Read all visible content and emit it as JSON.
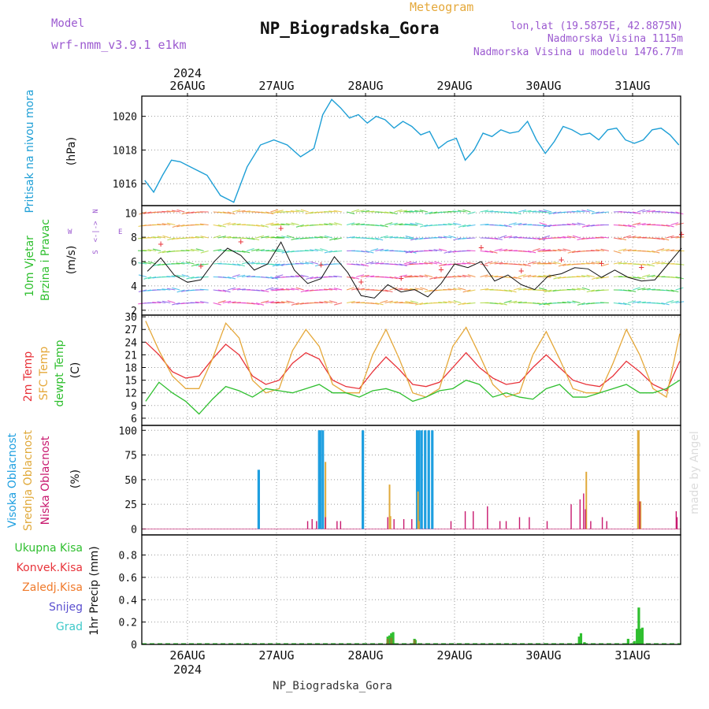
{
  "header": {
    "meteogram": "Meteogram",
    "title": "NP_Biogradska_Gora",
    "model_label": "Model",
    "model_name": "wrf-nmm_v3.9.1 e1km",
    "lonlat": "lon,lat (19.5875E, 42.8875N)",
    "elevation": "Nadmorska Visina 1115m",
    "model_elevation": "Nadmorska Visina u modelu 1476.77m",
    "year": "2024",
    "footer": "NP_Biogradska_Gora",
    "watermark": "made by Angel"
  },
  "colors": {
    "pressure": "#1e9fd6",
    "temp2m": "#e8333a",
    "sfc": "#e5a83a",
    "dewpt": "#2fbf2f",
    "high_cloud": "#1e9fe0",
    "mid_cloud": "#e0a93a",
    "low_cloud": "#c8186e",
    "total_precip": "#2fbf2f",
    "conv_precip": "#e8333a",
    "frozen_precip": "#f07a2a",
    "snow": "#5a4fcf",
    "hail": "#3fc9c9",
    "title_purple": "#9b59d0"
  },
  "chart_data": [
    {
      "type": "line",
      "panel": "pressure",
      "ylabel_main": "Pritisak na nivou mora",
      "ylabel_unit": "(hPa)",
      "yticks": [
        1016,
        1018,
        1020
      ],
      "ylim": [
        1014.7,
        1021.2
      ],
      "x_days": [
        0,
        0.1,
        0.2,
        0.3,
        0.4,
        0.55,
        0.7,
        0.85,
        1.0,
        1.15,
        1.3,
        1.45,
        1.6,
        1.75,
        1.9,
        2.0,
        2.1,
        2.2,
        2.3,
        2.4,
        2.5,
        2.6,
        2.7,
        2.8,
        2.9,
        3.0,
        3.1,
        3.2,
        3.3,
        3.4,
        3.5,
        3.6,
        3.7,
        3.8,
        3.9,
        4.0,
        4.1,
        4.2,
        4.3,
        4.4,
        4.5,
        4.6,
        4.7,
        4.8,
        4.9,
        5.0,
        5.1,
        5.2,
        5.3,
        5.4,
        5.5,
        5.6,
        5.7,
        5.8,
        5.9,
        6.0
      ],
      "values": [
        1016.2,
        1015.5,
        1016.5,
        1017.4,
        1017.3,
        1016.9,
        1016.5,
        1015.3,
        1014.9,
        1017.0,
        1018.3,
        1018.6,
        1018.3,
        1017.6,
        1018.1,
        1020.1,
        1021.0,
        1020.5,
        1019.9,
        1020.1,
        1019.6,
        1020.0,
        1019.8,
        1019.3,
        1019.7,
        1019.4,
        1018.9,
        1019.1,
        1018.1,
        1018.5,
        1018.7,
        1017.4,
        1018.0,
        1019.0,
        1018.8,
        1019.2,
        1019.0,
        1019.1,
        1019.7,
        1018.6,
        1017.8,
        1018.5,
        1019.4,
        1019.2,
        1018.9,
        1019.0,
        1018.6,
        1019.2,
        1019.3,
        1018.6,
        1018.4,
        1018.6,
        1019.2,
        1019.3,
        1018.9,
        1018.3
      ]
    },
    {
      "type": "line",
      "panel": "wind",
      "ylabel_main": "10m Vjetar",
      "ylabel_sub": "Brzina i Pravac",
      "ylabel_unit": "(m/s)",
      "compass_n": "N",
      "compass_s": "S",
      "compass_w": "W",
      "compass_e": "E",
      "compass_center": "<-|->",
      "yticks": [
        2,
        4,
        6,
        8,
        10
      ],
      "ylim": [
        1.6,
        10.6
      ],
      "x_days": [
        0,
        0.15,
        0.3,
        0.45,
        0.6,
        0.75,
        0.9,
        1.05,
        1.2,
        1.35,
        1.5,
        1.65,
        1.8,
        1.95,
        2.1,
        2.25,
        2.4,
        2.55,
        2.7,
        2.85,
        3.0,
        3.15,
        3.3,
        3.45,
        3.6,
        3.75,
        3.9,
        4.05,
        4.2,
        4.35,
        4.5,
        4.65,
        4.8,
        4.95,
        5.1,
        5.25,
        5.4,
        5.55,
        5.7,
        5.85,
        6.0
      ],
      "values": [
        5.2,
        6.3,
        4.9,
        4.3,
        4.5,
        6.0,
        7.1,
        6.5,
        5.3,
        5.8,
        7.6,
        5.3,
        4.2,
        4.6,
        6.4,
        5.1,
        3.2,
        3.0,
        4.1,
        3.5,
        3.7,
        3.1,
        4.2,
        5.8,
        5.5,
        6.0,
        4.4,
        4.9,
        4.1,
        3.7,
        4.8,
        5.0,
        5.5,
        5.4,
        4.7,
        5.3,
        4.7,
        4.4,
        4.5,
        5.8,
        7.1
      ]
    },
    {
      "type": "line",
      "panel": "temperature",
      "ylabel_1": "2m Temp",
      "ylabel_2": "SFC Temp",
      "ylabel_3": "dewpt Temp",
      "ylabel_unit": "(C)",
      "yticks": [
        6,
        9,
        12,
        15,
        18,
        21,
        24,
        27,
        30
      ],
      "ylim": [
        4.3,
        30.4
      ],
      "x_days": [
        0,
        0.15,
        0.3,
        0.45,
        0.6,
        0.75,
        0.9,
        1.05,
        1.2,
        1.35,
        1.5,
        1.65,
        1.8,
        1.95,
        2.1,
        2.25,
        2.4,
        2.55,
        2.7,
        2.85,
        3.0,
        3.15,
        3.3,
        3.45,
        3.6,
        3.75,
        3.9,
        4.05,
        4.2,
        4.35,
        4.5,
        4.65,
        4.8,
        4.95,
        5.1,
        5.25,
        5.4,
        5.55,
        5.7,
        5.85,
        6.0
      ],
      "series": [
        {
          "name": "2m Temp",
          "values": [
            24,
            21,
            17,
            15.5,
            16,
            20,
            23.5,
            21,
            16,
            14,
            15,
            19,
            21.5,
            20,
            15,
            13.5,
            13,
            17,
            20.5,
            17.5,
            14,
            13.5,
            14.5,
            18,
            21.5,
            18,
            15.5,
            14,
            14.5,
            18,
            21,
            18,
            15,
            14,
            13.5,
            16,
            19.5,
            17,
            14,
            12.5,
            19.5
          ]
        },
        {
          "name": "SFC Temp",
          "values": [
            29,
            22,
            16,
            13,
            13,
            20,
            28.5,
            25,
            15,
            12,
            13,
            22,
            27,
            23,
            14,
            12,
            12,
            21,
            27,
            20,
            12,
            11,
            13,
            23,
            27.5,
            21,
            14,
            11,
            12,
            21,
            26.5,
            20,
            13,
            12,
            12,
            19,
            27,
            21,
            13,
            11,
            26
          ]
        },
        {
          "name": "dewpt Temp",
          "values": [
            10,
            14.5,
            12,
            10,
            7,
            10.5,
            13.5,
            12.5,
            11,
            13,
            12.5,
            12,
            13,
            14,
            12,
            12,
            11,
            12.5,
            13,
            12,
            10,
            11,
            12.5,
            13,
            15,
            14,
            11,
            12,
            11,
            10.5,
            13,
            14,
            11,
            11,
            12,
            13,
            14,
            12,
            12,
            13,
            15
          ]
        }
      ]
    },
    {
      "type": "bar",
      "panel": "cloud",
      "ylabel_1": "Visoka Oblacnost",
      "ylabel_2": "Srednja Oblacnost",
      "ylabel_3": "Niska Oblacnost",
      "ylabel_unit": "(%)",
      "yticks": [
        0,
        25,
        50,
        75,
        100
      ],
      "ylim": [
        -6,
        105
      ],
      "series": [
        {
          "name": "Visoka Oblacnost",
          "x_days": [
            1.3,
            1.98,
            1.99,
            2.02,
            2.47,
            3.08,
            3.1,
            3.13,
            3.17,
            3.21,
            3.25
          ],
          "values": [
            60,
            100,
            100,
            100,
            100,
            100,
            100,
            100,
            100,
            100,
            100
          ]
        },
        {
          "name": "Srednja Oblacnost",
          "x_days": [
            2.05,
            2.77,
            2.78,
            3.09,
            3.1,
            4.98,
            5.56,
            5.57,
            5.59
          ],
          "values": [
            68,
            45,
            13,
            38,
            8,
            58,
            100,
            100,
            28
          ]
        },
        {
          "name": "Niska Oblacnost",
          "x_days": [
            1.85,
            1.9,
            1.95,
            2.05,
            2.18,
            2.22,
            2.75,
            2.82,
            2.93,
            3.02,
            3.46,
            3.62,
            3.71,
            3.87,
            4.01,
            4.08,
            4.23,
            4.34,
            4.54,
            4.81,
            4.91,
            4.95,
            4.97,
            5.03,
            5.16,
            5.21,
            5.58,
            5.99,
            6.0
          ],
          "values": [
            8,
            10,
            8,
            12,
            8,
            8,
            12,
            10,
            10,
            10,
            8,
            18,
            18,
            23,
            8,
            8,
            12,
            12,
            8,
            25,
            30,
            36,
            20,
            8,
            12,
            8,
            28,
            18,
            12
          ]
        }
      ]
    },
    {
      "type": "bar",
      "panel": "precip",
      "ylabel_1": "Ukupna Kisa",
      "ylabel_2": "Konvek.Kisa",
      "ylabel_3": "Zaledj.Kisa",
      "ylabel_4": "Snijeg",
      "ylabel_5": "Grad",
      "ylabel_unit": "1hr Precip (mm)",
      "yticks": [
        0,
        0.2,
        0.4,
        0.6,
        0.8
      ],
      "ylim": [
        0,
        0.98
      ],
      "x_labels": [
        "26AUG",
        "27AUG",
        "28AUG",
        "29AUG",
        "30AUG",
        "31AUG"
      ],
      "series": [
        {
          "name": "Ukupna Kisa",
          "x_days": [
            2.75,
            2.77,
            2.79,
            2.81,
            3.05,
            3.06,
            4.9,
            4.92,
            4.96,
            5.45,
            5.52,
            5.55,
            5.57,
            5.59,
            5.61
          ],
          "values": [
            0.07,
            0.08,
            0.1,
            0.11,
            0.05,
            0.04,
            0.07,
            0.1,
            0.02,
            0.05,
            0.03,
            0.14,
            0.33,
            0.14,
            0.15
          ]
        },
        {
          "name": "Konvek.Kisa",
          "x_days": [
            2.75,
            2.79,
            3.05
          ],
          "values": [
            0.05,
            0.06,
            0.04
          ]
        }
      ]
    }
  ]
}
